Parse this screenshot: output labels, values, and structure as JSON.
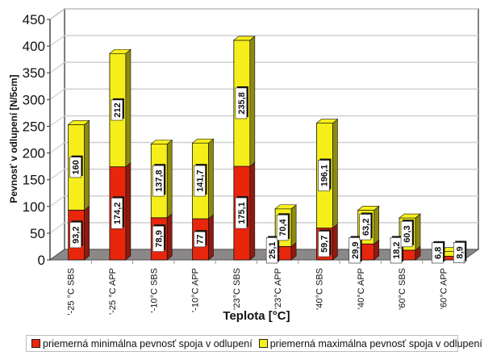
{
  "chart_data": {
    "type": "bar",
    "stacked": true,
    "three_d": true,
    "title": "",
    "xlabel": "Teplota [°C]",
    "ylabel": "Pevnosť v odlupení [N/5cm]",
    "ylim": [
      0,
      450
    ],
    "yticks": [
      "0",
      "50",
      "100",
      "150",
      "200",
      "250",
      "300",
      "350",
      "400",
      "450"
    ],
    "grid": true,
    "legend_position": "bottom",
    "categories": [
      "-25 °C SBS",
      "-25 °C APP",
      "-10°C  SBS",
      "-10°C  APP",
      "23°C SBS",
      "23°C APP",
      "40°C SBS",
      "40°C  APP",
      "60°C  SBS",
      "60°C  APP"
    ],
    "series": [
      {
        "name": "priemerná minimálna pevnosť spoja v odlupení",
        "color": "#e8260c",
        "side_color": "#8e1a10",
        "values": [
          93.2,
          174.2,
          78.9,
          77,
          175.1,
          25.1,
          59.7,
          29.9,
          18.2,
          6.8
        ],
        "labels": [
          "93,2",
          "174,2",
          "78,9",
          "77",
          "175,1",
          "25,1",
          "59,7",
          "29,9",
          "18,2",
          "6,8"
        ]
      },
      {
        "name": "priemerná maximálna pevnosť spoja v odlupení",
        "color": "#f6ee1a",
        "side_color": "#8c8a10",
        "values": [
          160,
          212,
          137.8,
          141.7,
          235.8,
          70.4,
          196.1,
          63.2,
          60.3,
          8.9
        ],
        "labels": [
          "160",
          "212",
          "137,8",
          "141,7",
          "235,8",
          "70,4",
          "196,1",
          "63,2",
          "60,3",
          "8,9"
        ]
      }
    ],
    "floor_color": "#8c8888",
    "grid_color": "#cfcfcf"
  },
  "legend": {
    "items": [
      {
        "label": "priemerná minimálna pevnosť spoja v odlupení",
        "color": "#e8260c"
      },
      {
        "label": "priemerná maximálna pevnosť spoja v odlupení",
        "color": "#f6ee1a"
      }
    ]
  }
}
